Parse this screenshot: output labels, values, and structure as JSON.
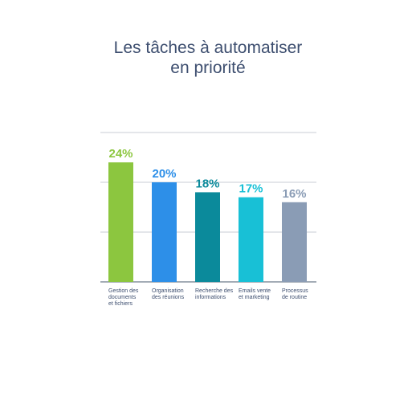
{
  "chart_data": {
    "type": "bar",
    "title": [
      "Les tâches à automatiser",
      "en priorité"
    ],
    "categories": [
      [
        "Gestion des",
        "documents",
        "et fichiers"
      ],
      [
        "Organisation",
        "des réunions"
      ],
      [
        "Recherche des",
        "informations"
      ],
      [
        "Emails vente",
        "et marketing"
      ],
      [
        "Processus",
        "de routine"
      ]
    ],
    "values": [
      24,
      20,
      18,
      17,
      16
    ],
    "data_labels": [
      "24%",
      "20%",
      "18%",
      "17%",
      "16%"
    ],
    "colors": [
      "#8cc63f",
      "#2d8fe8",
      "#0b8a9b",
      "#18c0d6",
      "#8a9cb5"
    ],
    "unit": "%",
    "ylim": [
      0,
      30
    ],
    "grid": true,
    "gridline_values": [
      10,
      20,
      30
    ],
    "axis_color": "#6c7b8a",
    "grid_color": "#c9ced6",
    "title_color": "#3d4e6f"
  }
}
